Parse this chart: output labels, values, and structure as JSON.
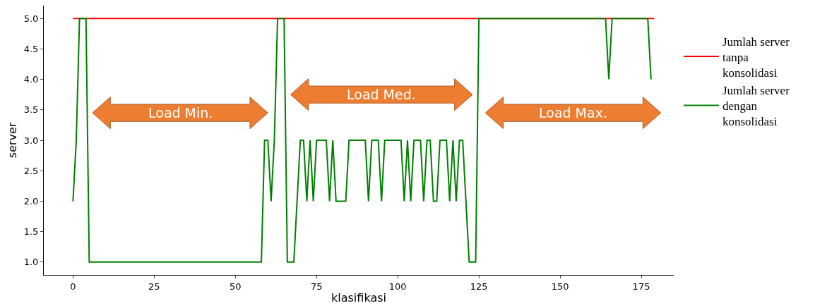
{
  "chart_data": {
    "type": "line",
    "xlabel": "klasifikasi",
    "ylabel": "server",
    "xlim": [
      -9,
      185
    ],
    "xticks": [
      0,
      25,
      50,
      75,
      100,
      125,
      150,
      175
    ],
    "ylim": [
      0.79,
      5.21
    ],
    "yticks": [
      {
        "value": 1,
        "label": "1.0"
      },
      {
        "value": 1.5,
        "label": "1.5"
      },
      {
        "value": 2,
        "label": "2.0"
      },
      {
        "value": 2.5,
        "label": "2.5"
      },
      {
        "value": 3,
        "label": "3.0"
      },
      {
        "value": 3.5,
        "label": "3.5"
      },
      {
        "value": 4,
        "label": "4.0"
      },
      {
        "value": 4.5,
        "label": "4.5"
      },
      {
        "value": 5,
        "label": "5.0"
      }
    ],
    "grid": false,
    "legend": "right",
    "marker": "none",
    "line_style": "solid",
    "annotations": [
      "Load Min.",
      "Load Med.",
      "Load Max."
    ],
    "series": [
      {
        "name": "Jumlah server tanpa konsolidasi",
        "color": "#ff0000",
        "x": [
          0,
          179
        ],
        "values": [
          5,
          5
        ]
      },
      {
        "name": "Jumlah server dengan konsolidasi",
        "color": "#008000",
        "x": [
          0,
          1,
          2,
          3,
          4,
          5,
          6,
          7,
          8,
          9,
          10,
          11,
          12,
          13,
          14,
          15,
          16,
          17,
          18,
          19,
          20,
          21,
          22,
          23,
          24,
          25,
          26,
          27,
          28,
          29,
          30,
          31,
          32,
          33,
          34,
          35,
          36,
          37,
          38,
          39,
          40,
          41,
          42,
          43,
          44,
          45,
          46,
          47,
          48,
          49,
          50,
          51,
          52,
          53,
          54,
          55,
          56,
          57,
          58,
          59,
          60,
          61,
          62,
          63,
          64,
          65,
          66,
          67,
          68,
          69,
          70,
          71,
          72,
          73,
          74,
          75,
          76,
          77,
          78,
          79,
          80,
          81,
          82,
          83,
          84,
          85,
          86,
          87,
          88,
          89,
          90,
          91,
          92,
          93,
          94,
          95,
          96,
          97,
          98,
          99,
          100,
          101,
          102,
          103,
          104,
          105,
          106,
          107,
          108,
          109,
          110,
          111,
          112,
          113,
          114,
          115,
          116,
          117,
          118,
          119,
          120,
          121,
          122,
          123,
          124,
          125,
          126,
          127,
          128,
          129,
          130,
          131,
          132,
          133,
          134,
          135,
          136,
          137,
          138,
          139,
          140,
          141,
          142,
          143,
          144,
          145,
          146,
          147,
          148,
          149,
          150,
          151,
          152,
          153,
          154,
          155,
          156,
          157,
          158,
          159,
          160,
          161,
          162,
          163,
          164,
          165,
          166,
          167,
          168,
          169,
          170,
          171,
          172,
          173,
          174,
          175,
          176,
          177,
          178
        ],
        "values": [
          2,
          3,
          5,
          5,
          5,
          1,
          1,
          1,
          1,
          1,
          1,
          1,
          1,
          1,
          1,
          1,
          1,
          1,
          1,
          1,
          1,
          1,
          1,
          1,
          1,
          1,
          1,
          1,
          1,
          1,
          1,
          1,
          1,
          1,
          1,
          1,
          1,
          1,
          1,
          1,
          1,
          1,
          1,
          1,
          1,
          1,
          1,
          1,
          1,
          1,
          1,
          1,
          1,
          1,
          1,
          1,
          1,
          1,
          1,
          3,
          3,
          2,
          3,
          5,
          5,
          5,
          1,
          1,
          1,
          2,
          3,
          3,
          2,
          3,
          2,
          3,
          3,
          3,
          3,
          2,
          3,
          2,
          2,
          2,
          2,
          3,
          3,
          3,
          3,
          3,
          3,
          2,
          3,
          3,
          3,
          2,
          3,
          3,
          3,
          3,
          3,
          3,
          2,
          3,
          2,
          3,
          3,
          3,
          2,
          3,
          3,
          2,
          2,
          3,
          3,
          3,
          2,
          3,
          2,
          3,
          3,
          2,
          1,
          1,
          1,
          5,
          5,
          5,
          5,
          5,
          5,
          5,
          5,
          5,
          5,
          5,
          5,
          5,
          5,
          5,
          5,
          5,
          5,
          5,
          5,
          5,
          5,
          5,
          5,
          5,
          5,
          5,
          5,
          5,
          5,
          5,
          5,
          5,
          5,
          5,
          5,
          5,
          5,
          5,
          5,
          4,
          5,
          5,
          5,
          5,
          5,
          5,
          5,
          5,
          5,
          5,
          5,
          5,
          4
        ]
      }
    ]
  }
}
